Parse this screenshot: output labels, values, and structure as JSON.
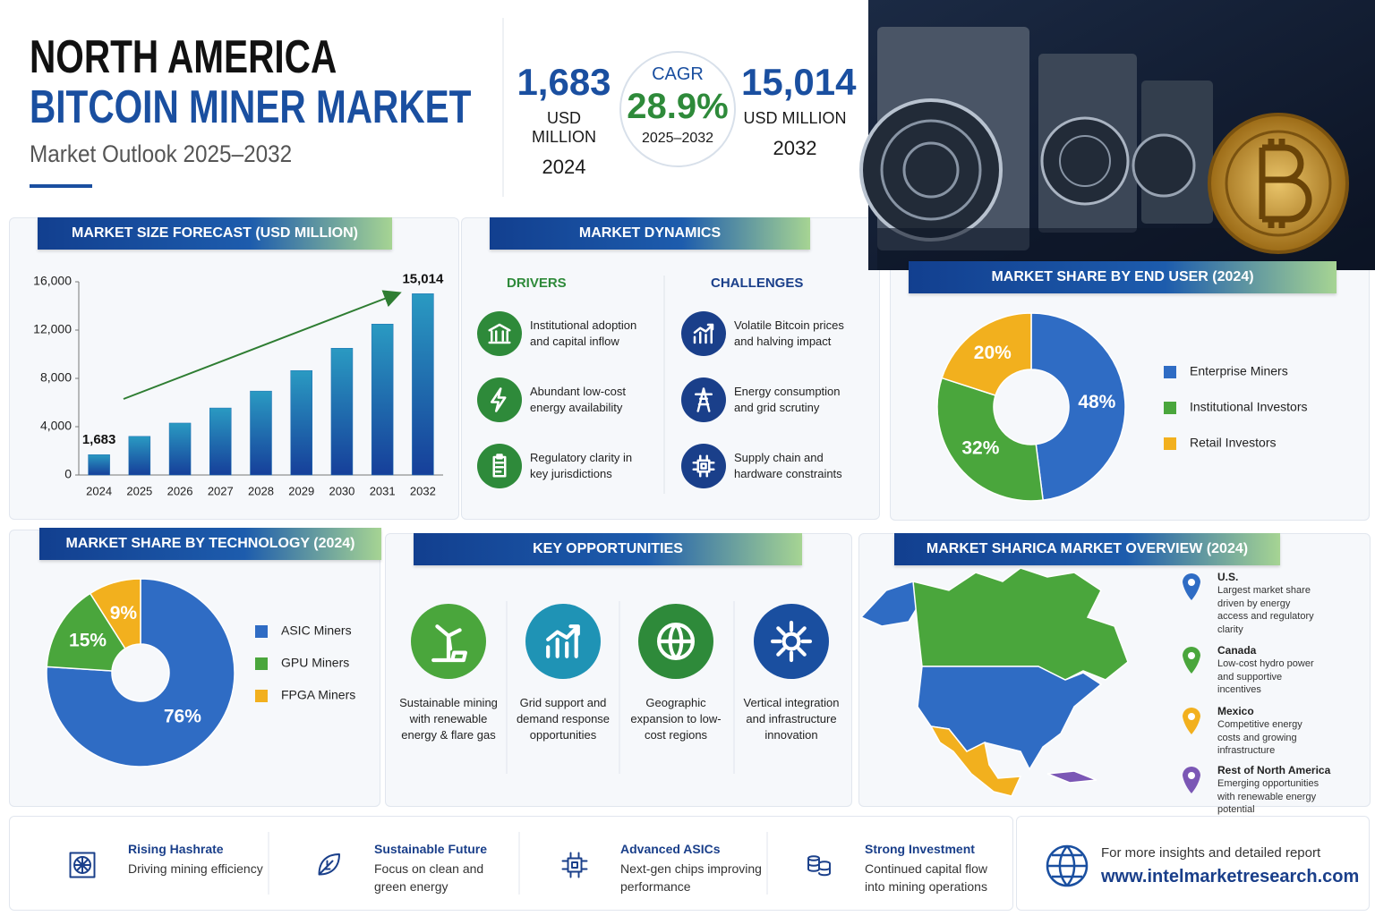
{
  "header": {
    "title_line1": "NORTH AMERICA",
    "title_line2": "BITCOIN MINER MARKET",
    "subtitle": "Market Outlook 2025–2032"
  },
  "kpis": {
    "start": {
      "value": "1,683",
      "unit": "USD MILLION",
      "year": "2024"
    },
    "cagr": {
      "label": "CAGR",
      "value": "28.9%",
      "period": "2025–2032"
    },
    "end": {
      "value": "15,014",
      "unit": "USD MILLION",
      "year": "2032"
    }
  },
  "chart_data": [
    {
      "type": "bar",
      "title": "MARKET SIZE FORECAST (USD MILLION)",
      "categories": [
        "2024",
        "2025",
        "2026",
        "2027",
        "2028",
        "2029",
        "2030",
        "2031",
        "2032"
      ],
      "values": [
        1683,
        3200,
        4300,
        5550,
        6950,
        8650,
        10500,
        12500,
        15014
      ],
      "value_labels": [
        "1,683",
        null,
        null,
        null,
        null,
        null,
        null,
        null,
        "15,014"
      ],
      "color": "#1f6fb2",
      "ylim": [
        0,
        16000
      ],
      "yticks": [
        0,
        {
          "value": 4000,
          "label": "4,000"
        },
        {
          "value": 8000,
          "label": "8,000"
        },
        {
          "value": 12000,
          "label": "12,000"
        },
        {
          "value": 16000,
          "label": "16,000"
        }
      ]
    },
    {
      "type": "pie",
      "title": "MARKET SHARE BY END USER (2024)",
      "categories": [
        "Enterprise Miners",
        "Institutional Investors",
        "Retail Investors"
      ],
      "values": [
        48,
        32,
        20
      ],
      "value_labels": [
        "48%",
        "32%",
        "20%"
      ],
      "colors": [
        "#2f6cc4",
        "#4aa63c",
        "#f2b01e"
      ]
    },
    {
      "type": "pie",
      "title": "MARKET SHARE BY TECHNOLOGY (2024)",
      "categories": [
        "ASIC Miners",
        "GPU Miners",
        "FPGA Miners"
      ],
      "values": [
        76,
        15,
        9
      ],
      "value_labels": [
        "76%",
        "15%",
        "9%"
      ],
      "colors": [
        "#2f6cc4",
        "#4aa63c",
        "#f2b01e"
      ]
    }
  ],
  "dynamics": {
    "title": "MARKET DYNAMICS",
    "drivers": {
      "heading": "DRIVERS",
      "items": [
        "Institutional adoption and capital inflow",
        "Abundant low-cost energy availability",
        "Regulatory clarity in key jurisdictions"
      ]
    },
    "challenges": {
      "heading": "CHALLENGES",
      "items": [
        "Volatile Bitcoin prices and halving impact",
        "Energy consumption and grid scrutiny",
        "Supply chain and hardware constraints"
      ]
    }
  },
  "opportunities": {
    "title": "KEY OPPORTUNITIES",
    "items": [
      "Sustainable mining with renewable energy & flare gas",
      "Grid support and demand response opportunities",
      "Geographic expansion to low-cost regions",
      "Vertical integration and infrastructure innovation"
    ]
  },
  "map_overview": {
    "title": "MARKET SHARICA MARKET OVERVIEW (2024)",
    "regions": [
      {
        "name": "U.S.",
        "text": "Largest market share driven by energy access and regulatory clarity"
      },
      {
        "name": "Canada",
        "text": "Low-cost hydro power and supportive incentives"
      },
      {
        "name": "Mexico",
        "text": "Competitive energy costs and growing infrastructure"
      },
      {
        "name": "Rest of North America",
        "text": "Emerging opportunities with renewable energy potential"
      }
    ]
  },
  "features": [
    {
      "title": "Rising Hashrate",
      "text": "Driving mining efficiency"
    },
    {
      "title": "Sustainable Future",
      "text": "Focus on clean and green energy"
    },
    {
      "title": "Advanced ASICs",
      "text": "Next-gen chips improving performance"
    },
    {
      "title": "Strong Investment",
      "text": "Continued capital flow into mining operations"
    }
  ],
  "footer": {
    "text": "For more insights and detailed report",
    "url": "www.intelmarketresearch.com"
  }
}
